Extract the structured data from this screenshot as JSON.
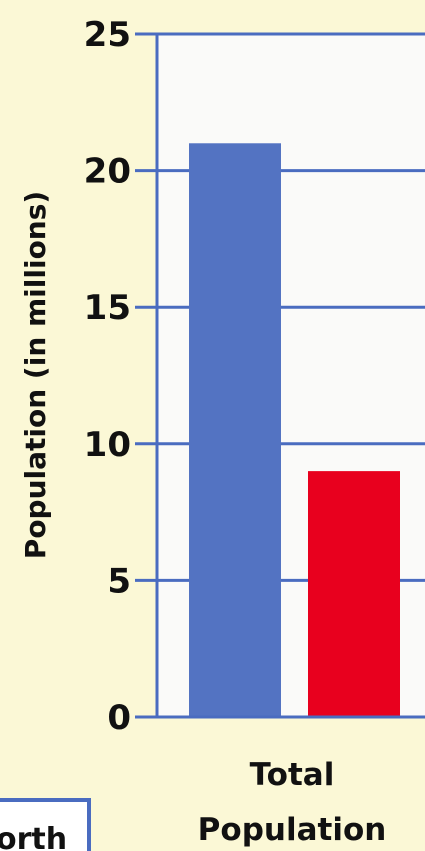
{
  "chart_data": {
    "type": "bar",
    "categories": [
      "Total Population"
    ],
    "category_label_lines": [
      "Total",
      "Population"
    ],
    "series": [
      {
        "values": [
          21
        ],
        "color": "#5373c2"
      },
      {
        "values": [
          9
        ],
        "color": "#e8001e"
      }
    ],
    "ylabel": "Population (in millions)",
    "ylim": [
      0,
      25
    ],
    "yticks": [
      0,
      5,
      10,
      15,
      20,
      25
    ],
    "grid": true,
    "legend_visible_text": "orth"
  },
  "colors": {
    "background": "#fbf8d6",
    "plot_background": "#fafaf9",
    "axis": "#4a6cc0",
    "gridline": "#4a6cc0"
  }
}
